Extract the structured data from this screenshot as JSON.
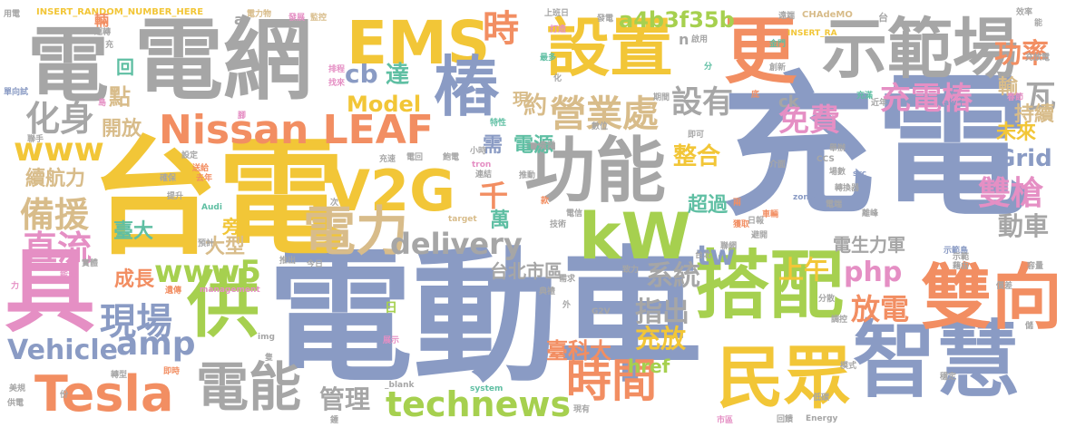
{
  "colors": {
    "blue": "#8a9bc4",
    "gray": "#a6a6a6",
    "orange": "#f28e62",
    "yellow": "#f2c637",
    "green": "#a6d04f",
    "teal": "#5fbfa3",
    "tan": "#d8bc8a",
    "pink": "#e58fc4"
  },
  "words": [
    {
      "t": "充電",
      "c": "blue"
    },
    {
      "t": "電動車",
      "c": "blue"
    },
    {
      "t": "台電",
      "c": "yellow"
    },
    {
      "t": "電網",
      "c": "gray"
    },
    {
      "t": "電",
      "c": "gray"
    },
    {
      "t": "具",
      "c": "pink"
    },
    {
      "t": "智慧",
      "c": "blue"
    },
    {
      "t": "搭配",
      "c": "green"
    },
    {
      "t": "功能",
      "c": "gray"
    },
    {
      "t": "示範場",
      "c": "gray"
    },
    {
      "t": "雙向",
      "c": "orange"
    },
    {
      "t": "民眾",
      "c": "yellow"
    },
    {
      "t": "供",
      "c": "green"
    },
    {
      "t": "設置",
      "c": "yellow"
    },
    {
      "t": "更",
      "c": "orange"
    },
    {
      "t": "EMS",
      "c": "yellow"
    },
    {
      "t": "V2G",
      "c": "yellow"
    },
    {
      "t": "kW",
      "c": "green"
    },
    {
      "t": "電力",
      "c": "tan"
    },
    {
      "t": "Tesla",
      "c": "orange"
    },
    {
      "t": "電能",
      "c": "gray"
    },
    {
      "t": "Nissan LEAF",
      "c": "orange"
    },
    {
      "t": "樁",
      "c": "blue"
    },
    {
      "t": "時間",
      "c": "orange"
    },
    {
      "t": "technews",
      "c": "green"
    },
    {
      "t": "delivery",
      "c": "gray"
    },
    {
      "t": "營業處",
      "c": "tan"
    },
    {
      "t": "時",
      "c": "orange"
    },
    {
      "t": "化身",
      "c": "gray"
    },
    {
      "t": "充電樁",
      "c": "pink"
    },
    {
      "t": "免費",
      "c": "pink"
    },
    {
      "t": "雙槍",
      "c": "pink"
    },
    {
      "t": "設有",
      "c": "gray"
    },
    {
      "t": "備援",
      "c": "tan"
    },
    {
      "t": "直流",
      "c": "pink"
    },
    {
      "t": "現場",
      "c": "blue"
    },
    {
      "t": "www5",
      "c": "green"
    },
    {
      "t": "www",
      "c": "yellow"
    },
    {
      "t": "amp",
      "c": "blue"
    },
    {
      "t": "Vehicle",
      "c": "blue"
    },
    {
      "t": "php",
      "c": "pink"
    },
    {
      "t": "放電",
      "c": "orange"
    },
    {
      "t": "功率",
      "c": "orange"
    },
    {
      "t": "a4b3f35b",
      "c": "green"
    },
    {
      "t": "整合",
      "c": "yellow"
    },
    {
      "t": "cb",
      "c": "blue"
    },
    {
      "t": "達",
      "c": "teal"
    },
    {
      "t": "Model",
      "c": "yellow"
    },
    {
      "t": "約",
      "c": "tan"
    },
    {
      "t": "tw",
      "c": "blue"
    },
    {
      "t": "上午",
      "c": "yellow"
    },
    {
      "t": "系統",
      "c": "gray"
    },
    {
      "t": "指出",
      "c": "gray"
    },
    {
      "t": "充放",
      "c": "yellow"
    },
    {
      "t": "Grid",
      "c": "blue"
    },
    {
      "t": "動車",
      "c": "gray"
    },
    {
      "t": "瓦",
      "c": "gray"
    },
    {
      "t": "持續",
      "c": "tan"
    },
    {
      "t": "輸",
      "c": "tan"
    },
    {
      "t": "未來",
      "c": "yellow"
    },
    {
      "t": "管理",
      "c": "gray"
    },
    {
      "t": "臺科大",
      "c": "orange"
    },
    {
      "t": "href",
      "c": "green"
    },
    {
      "t": "台北市區",
      "c": "gray"
    },
    {
      "t": "電生力軍",
      "c": "gray"
    },
    {
      "t": "電源",
      "c": "teal"
    },
    {
      "t": "需",
      "c": "blue"
    },
    {
      "t": "超過",
      "c": "teal"
    },
    {
      "t": "千",
      "c": "orange"
    },
    {
      "t": "萬",
      "c": "teal"
    },
    {
      "t": "開放",
      "c": "tan"
    },
    {
      "t": "點",
      "c": "tan"
    },
    {
      "t": "回",
      "c": "teal"
    },
    {
      "t": "成長",
      "c": "orange"
    },
    {
      "t": "續航力",
      "c": "tan"
    },
    {
      "t": "大型",
      "c": "tan"
    },
    {
      "t": "臺大",
      "c": "teal"
    },
    {
      "t": "旁",
      "c": "yellow"
    },
    {
      "t": "現",
      "c": "tan"
    },
    {
      "t": "ck",
      "c": "gray"
    },
    {
      "t": "n",
      "c": "gray"
    },
    {
      "t": "INSERT_RANDOM_NUMBER_HERE",
      "c": "yellow"
    },
    {
      "t": "INSERT_RA",
      "c": "yellow"
    },
    {
      "t": "CHAdeMO",
      "c": "tan"
    },
    {
      "t": "用電",
      "c": "gray"
    },
    {
      "t": "輛",
      "c": "orange"
    },
    {
      "t": "電力物",
      "c": "tan"
    },
    {
      "t": "發展",
      "c": "pink"
    },
    {
      "t": "監控",
      "c": "tan"
    },
    {
      "t": "上班日",
      "c": "gray"
    },
    {
      "t": "發電",
      "c": "gray"
    },
    {
      "t": "遠端",
      "c": "gray"
    },
    {
      "t": "效率",
      "c": "gray"
    },
    {
      "t": "a",
      "c": "gray"
    },
    {
      "t": "台",
      "c": "gray"
    },
    {
      "t": "運轉",
      "c": "gray"
    },
    {
      "t": "排程",
      "c": "pink"
    },
    {
      "t": "打造",
      "c": "pink"
    },
    {
      "t": "啟用",
      "c": "gray"
    },
    {
      "t": "金門",
      "c": "teal"
    },
    {
      "t": "找來",
      "c": "pink"
    },
    {
      "t": "最多",
      "c": "teal"
    },
    {
      "t": "化",
      "c": "gray"
    },
    {
      "t": "分",
      "c": "teal"
    },
    {
      "t": "創新",
      "c": "gray"
    },
    {
      "t": "充放電",
      "c": "gray"
    },
    {
      "t": "單向試",
      "c": "blue"
    },
    {
      "t": "島",
      "c": "pink"
    },
    {
      "t": "特性",
      "c": "teal"
    },
    {
      "t": "數位",
      "c": "gray"
    },
    {
      "t": "期間",
      "c": "gray"
    },
    {
      "t": "即可",
      "c": "gray"
    },
    {
      "t": "底",
      "c": "orange"
    },
    {
      "t": "充滿",
      "c": "teal"
    },
    {
      "t": "近年",
      "c": "gray"
    },
    {
      "t": "春節",
      "c": "pink"
    },
    {
      "t": "腳",
      "c": "pink"
    },
    {
      "t": "聯手",
      "c": "gray"
    },
    {
      "t": "小時",
      "c": "gray"
    },
    {
      "t": "產業",
      "c": "gray"
    },
    {
      "t": "舉辦",
      "c": "gray"
    },
    {
      "t": "tron",
      "c": "pink"
    },
    {
      "t": "設定",
      "c": "gray"
    },
    {
      "t": "充速",
      "c": "gray"
    },
    {
      "t": "電回",
      "c": "gray"
    },
    {
      "t": "飽電",
      "c": "gray"
    },
    {
      "t": "介面",
      "c": "gray"
    },
    {
      "t": "CCS",
      "c": "gray"
    },
    {
      "t": "送給",
      "c": "orange"
    },
    {
      "t": "去年",
      "c": "orange"
    },
    {
      "t": "連結",
      "c": "gray"
    },
    {
      "t": "推動",
      "c": "gray"
    },
    {
      "t": "場數",
      "c": "gray"
    },
    {
      "t": "src",
      "c": "blue"
    },
    {
      "t": "確保",
      "c": "gray"
    },
    {
      "t": "提升",
      "c": "gray"
    },
    {
      "t": "次",
      "c": "gray"
    },
    {
      "t": "款",
      "c": "orange"
    },
    {
      "t": "電信",
      "c": "gray"
    },
    {
      "t": "兩",
      "c": "orange"
    },
    {
      "t": "zoneid",
      "c": "blue"
    },
    {
      "t": "轉換器",
      "c": "gray"
    },
    {
      "t": "車輛",
      "c": "orange"
    },
    {
      "t": "電端",
      "c": "gray"
    },
    {
      "t": "離峰",
      "c": "gray"
    },
    {
      "t": "Audi",
      "c": "teal"
    },
    {
      "t": "技術",
      "c": "gray"
    },
    {
      "t": "獲取",
      "c": "orange"
    },
    {
      "t": "日報",
      "c": "gray"
    },
    {
      "t": "避開",
      "c": "gray"
    },
    {
      "t": "target",
      "c": "tan"
    },
    {
      "t": "預計",
      "c": "gray"
    },
    {
      "t": "示範島",
      "c": "blue"
    },
    {
      "t": "台北",
      "c": "gray"
    },
    {
      "t": "聯網",
      "c": "gray"
    },
    {
      "t": "示範",
      "c": "gray"
    },
    {
      "t": "藉由",
      "c": "gray"
    },
    {
      "t": "實體",
      "c": "gray"
    },
    {
      "t": "今日",
      "c": "gray"
    },
    {
      "t": "推出",
      "c": "gray"
    },
    {
      "t": "致力",
      "c": "gray"
    },
    {
      "t": "能源",
      "c": "pink"
    },
    {
      "t": "容量",
      "c": "gray"
    },
    {
      "t": "力",
      "c": "pink"
    },
    {
      "t": "遺傳",
      "c": "orange"
    },
    {
      "t": "management",
      "c": "pink"
    },
    {
      "t": "典禮",
      "c": "gray"
    },
    {
      "t": "需求",
      "c": "gray"
    },
    {
      "t": "價差",
      "c": "gray"
    },
    {
      "t": "分散",
      "c": "gray"
    },
    {
      "t": "G2V",
      "c": "gray"
    },
    {
      "t": "外",
      "c": "gray"
    },
    {
      "t": "調控",
      "c": "gray"
    },
    {
      "t": "日",
      "c": "green"
    },
    {
      "t": "img",
      "c": "gray"
    },
    {
      "t": "展示",
      "c": "pink"
    },
    {
      "t": "儲",
      "c": "gray"
    },
    {
      "t": "模式",
      "c": "gray"
    },
    {
      "t": "轉型",
      "c": "gray"
    },
    {
      "t": "即時",
      "c": "orange"
    },
    {
      "t": "美規",
      "c": "gray"
    },
    {
      "t": "供電",
      "c": "gray"
    },
    {
      "t": "_blank",
      "c": "gray"
    },
    {
      "t": "system",
      "c": "teal"
    },
    {
      "t": "現有",
      "c": "gray"
    },
    {
      "t": "穩定",
      "c": "gray"
    },
    {
      "t": "低碳",
      "c": "gray"
    },
    {
      "t": "市區",
      "c": "pink"
    },
    {
      "t": "回饋",
      "c": "gray"
    },
    {
      "t": "Energy",
      "c": "gray"
    },
    {
      "t": "鍾",
      "c": "gray"
    },
    {
      "t": "份",
      "c": "gray"
    },
    {
      "t": "隻",
      "c": "gray"
    },
    {
      "t": "充",
      "c": "gray"
    },
    {
      "t": "aw",
      "c": "blue"
    },
    {
      "t": "能",
      "c": "gray"
    }
  ]
}
